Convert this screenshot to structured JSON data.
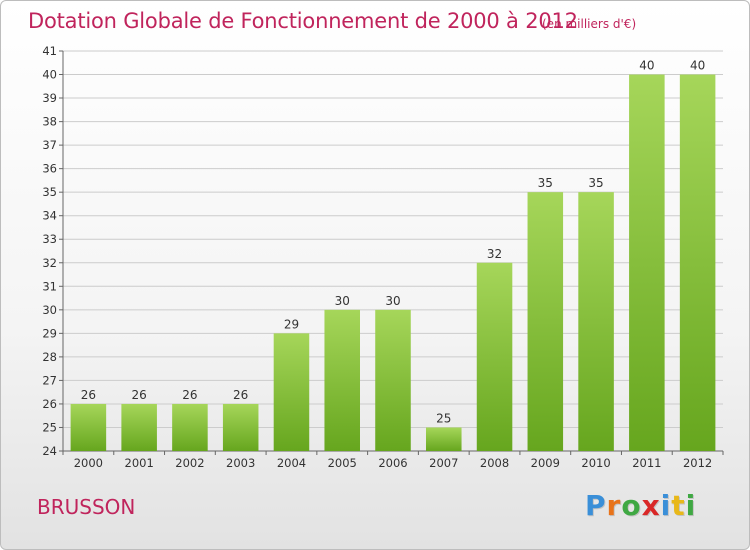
{
  "header": {
    "title": "Dotation Globale de Fonctionnement de 2000 à 2012",
    "unit": "(en milliers d'€)"
  },
  "footer": {
    "commune": "BRUSSON",
    "brand_letters": [
      "P",
      "r",
      "o",
      "x",
      "i",
      "t",
      "i"
    ],
    "brand_colors": [
      "#3a8fd8",
      "#e8731a",
      "#3fa843",
      "#d92727",
      "#3a8fd8",
      "#e8b81a",
      "#3fa843"
    ]
  },
  "colors": {
    "bar_light": "#a6d65a",
    "bar_dark": "#66a61e",
    "grid": "#cccccc",
    "title": "#c0245c"
  },
  "chart_data": {
    "type": "bar",
    "title": "Dotation Globale de Fonctionnement de 2000 à 2012",
    "categories": [
      "2000",
      "2001",
      "2002",
      "2003",
      "2004",
      "2005",
      "2006",
      "2007",
      "2008",
      "2009",
      "2010",
      "2011",
      "2012"
    ],
    "values": [
      26,
      26,
      26,
      26,
      29,
      30,
      30,
      25,
      32,
      35,
      35,
      40,
      40
    ],
    "xlabel": "",
    "ylabel": "",
    "ylim": [
      24,
      41
    ],
    "yticks": [
      24,
      25,
      26,
      27,
      28,
      29,
      30,
      31,
      32,
      33,
      34,
      35,
      36,
      37,
      38,
      39,
      40,
      41
    ],
    "grid": true,
    "legend": "none"
  }
}
